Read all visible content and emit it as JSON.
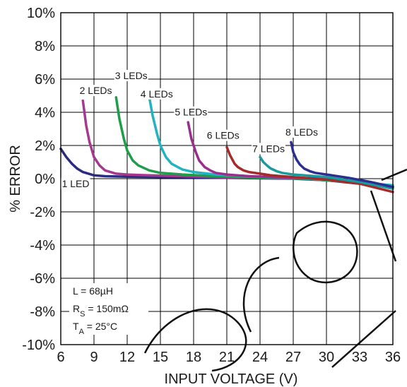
{
  "chart_data": {
    "type": "line",
    "xlabel": "INPUT VOLTAGE (V)",
    "ylabel": "% ERROR",
    "xlim": [
      6,
      36
    ],
    "ylim": [
      -10,
      10
    ],
    "x_ticks": [
      6,
      9,
      12,
      15,
      18,
      21,
      24,
      27,
      30,
      33,
      36
    ],
    "y_ticks": [
      10,
      8,
      6,
      4,
      2,
      0,
      -2,
      -4,
      -6,
      -8,
      -10
    ],
    "y_tick_labels": [
      "10%",
      "8%",
      "6%",
      "4%",
      "2%",
      "0%",
      "-2%",
      "-4%",
      "-6%",
      "-8%",
      "-10%"
    ],
    "grid": true,
    "annotations": {
      "inductance": "L = 68µH",
      "rs_prefix": "R",
      "rs_sub": "S",
      "rs_suffix": " = 150mΩ",
      "ta_prefix": "T",
      "ta_sub": "A",
      "ta_suffix": " = 25°C"
    },
    "series": [
      {
        "name": "1 LED",
        "color": "#2b2b7f",
        "label_pos": {
          "x": 6.1,
          "y": -0.5
        },
        "x": [
          6,
          6.5,
          7,
          7.5,
          8,
          8.5,
          9,
          10,
          12,
          15,
          18,
          21,
          24,
          27,
          30,
          33,
          36
        ],
        "y": [
          1.8,
          1.3,
          0.9,
          0.6,
          0.4,
          0.3,
          0.2,
          0.15,
          0.12,
          0.1,
          0.08,
          0.05,
          0.02,
          0.0,
          -0.1,
          -0.3,
          -0.5
        ]
      },
      {
        "name": "2 LEDs",
        "color": "#a5388f",
        "label_pos": {
          "x": 7.7,
          "y": 5.1
        },
        "x": [
          8,
          8.3,
          8.6,
          9,
          9.5,
          10,
          11,
          12,
          14,
          17,
          20,
          24,
          28,
          32,
          36
        ],
        "y": [
          4.7,
          3.2,
          2.2,
          1.3,
          0.8,
          0.5,
          0.3,
          0.25,
          0.2,
          0.15,
          0.1,
          0.05,
          0.0,
          -0.2,
          -0.5
        ]
      },
      {
        "name": "3 LEDs",
        "color": "#1e9e4a",
        "label_pos": {
          "x": 10.9,
          "y": 6.0
        },
        "x": [
          11,
          11.3,
          11.7,
          12,
          12.5,
          13,
          14,
          15,
          17,
          20,
          24,
          28,
          32,
          36
        ],
        "y": [
          4.9,
          3.6,
          2.4,
          1.7,
          1.1,
          0.8,
          0.5,
          0.35,
          0.25,
          0.15,
          0.05,
          0.0,
          -0.2,
          -0.5
        ]
      },
      {
        "name": "4 LEDs",
        "color": "#22b3c0",
        "label_pos": {
          "x": 13.2,
          "y": 4.9
        },
        "x": [
          14,
          14.3,
          14.7,
          15,
          15.5,
          16,
          17,
          18,
          20,
          23,
          27,
          31,
          36
        ],
        "y": [
          4.9,
          3.8,
          2.7,
          2.0,
          1.3,
          0.9,
          0.55,
          0.4,
          0.25,
          0.15,
          0.05,
          -0.1,
          -0.4
        ]
      },
      {
        "name": "5 LEDs",
        "color": "#9a2e8e",
        "label_pos": {
          "x": 16.3,
          "y": 3.8
        },
        "x": [
          17.5,
          17.8,
          18.2,
          18.5,
          19,
          19.5,
          20,
          21,
          23,
          26,
          30,
          33,
          36
        ],
        "y": [
          3.4,
          2.4,
          1.6,
          1.1,
          0.7,
          0.5,
          0.35,
          0.25,
          0.15,
          0.08,
          0.0,
          -0.2,
          -0.5
        ]
      },
      {
        "name": "6 LEDs",
        "color": "#a52a2a",
        "label_pos": {
          "x": 19.2,
          "y": 2.4
        },
        "x": [
          21,
          21.3,
          21.7,
          22,
          22.5,
          23,
          24,
          25,
          27,
          30,
          33,
          36
        ],
        "y": [
          1.9,
          1.4,
          0.9,
          0.7,
          0.5,
          0.4,
          0.3,
          0.2,
          0.1,
          -0.05,
          -0.3,
          -0.8
        ]
      },
      {
        "name": "7 LEDs",
        "color": "#1a9a9a",
        "label_pos": {
          "x": 23.3,
          "y": 1.6
        },
        "x": [
          24,
          24.3,
          24.7,
          25,
          25.5,
          26,
          27,
          28,
          30,
          33,
          36
        ],
        "y": [
          1.3,
          1.0,
          0.75,
          0.6,
          0.45,
          0.35,
          0.25,
          0.2,
          0.1,
          -0.2,
          -0.6
        ]
      },
      {
        "name": "8 LEDs",
        "color": "#2b2f8f",
        "label_pos": {
          "x": 26.3,
          "y": 2.6
        },
        "x": [
          26.8,
          27.0,
          27.3,
          27.6,
          28,
          28.5,
          29,
          30,
          32,
          34,
          36
        ],
        "y": [
          2.2,
          1.6,
          1.15,
          0.85,
          0.6,
          0.45,
          0.35,
          0.25,
          0.05,
          -0.2,
          -0.5
        ]
      }
    ]
  }
}
